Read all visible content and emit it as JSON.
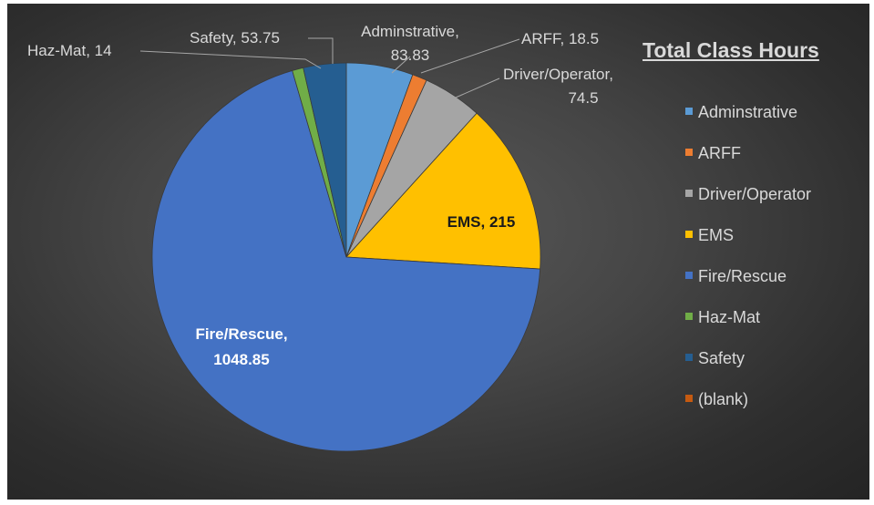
{
  "chart_data": {
    "type": "pie",
    "title": "Total Class Hours",
    "categories": [
      "Adminstrative",
      "ARFF",
      "Driver/Operator",
      "EMS",
      "Fire/Rescue",
      "Haz-Mat",
      "Safety"
    ],
    "values": [
      83.83,
      18.5,
      74.5,
      215,
      1048.85,
      14,
      53.75
    ],
    "colors": [
      "#5b9bd5",
      "#ed7d31",
      "#a5a5a5",
      "#ffc000",
      "#4472c4",
      "#70ad47",
      "#255e91"
    ],
    "data_labels": [
      [
        "Adminstrative,",
        "83.83"
      ],
      [
        "ARFF, 18.5"
      ],
      [
        "Driver/Operator,",
        "74.5"
      ],
      [
        "EMS, 215"
      ],
      [
        "Fire/Rescue,",
        "1048.85"
      ],
      [
        "Haz-Mat, 14"
      ],
      [
        "Safety, 53.75"
      ]
    ],
    "legend": {
      "position": "right",
      "entries": [
        {
          "label": "Adminstrative",
          "color": "#5b9bd5"
        },
        {
          "label": "ARFF",
          "color": "#ed7d31"
        },
        {
          "label": "Driver/Operator",
          "color": "#a5a5a5"
        },
        {
          "label": "EMS",
          "color": "#ffc000"
        },
        {
          "label": "Fire/Rescue",
          "color": "#4472c4"
        },
        {
          "label": "Haz-Mat",
          "color": "#70ad47"
        },
        {
          "label": "Safety",
          "color": "#255e91"
        },
        {
          "label": "(blank)",
          "color": "#c55a11"
        }
      ]
    }
  }
}
